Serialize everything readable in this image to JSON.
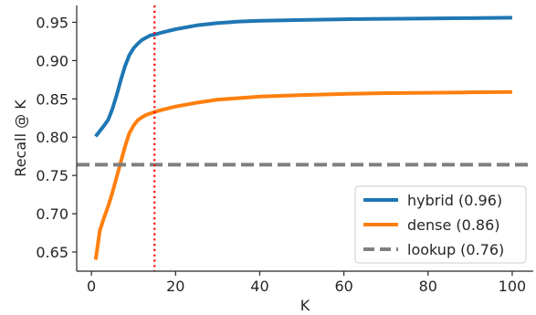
{
  "chart_data": {
    "type": "line",
    "xlabel": "K",
    "ylabel": "Recall @ K",
    "xlim": [
      -3.5,
      105
    ],
    "ylim": [
      0.625,
      0.972
    ],
    "x_ticks": [
      0,
      20,
      40,
      60,
      80,
      100
    ],
    "y_ticks": [
      0.65,
      0.7,
      0.75,
      0.8,
      0.85,
      0.9,
      0.95
    ],
    "grid": false,
    "legend_position": "lower-right",
    "series": [
      {
        "name": "hybrid (0.96)",
        "color": "#1f77b4",
        "style": "solid",
        "x": [
          1,
          2,
          3,
          4,
          5,
          6,
          7,
          8,
          9,
          10,
          11,
          12,
          13,
          14,
          15,
          17,
          20,
          25,
          30,
          35,
          40,
          50,
          60,
          70,
          80,
          90,
          100
        ],
        "y": [
          0.801,
          0.808,
          0.815,
          0.823,
          0.837,
          0.855,
          0.875,
          0.893,
          0.907,
          0.916,
          0.922,
          0.927,
          0.93,
          0.933,
          0.934,
          0.937,
          0.941,
          0.946,
          0.949,
          0.951,
          0.952,
          0.953,
          0.954,
          0.9545,
          0.955,
          0.9555,
          0.956
        ]
      },
      {
        "name": "dense (0.86)",
        "color": "#ff7f0e",
        "style": "solid",
        "x": [
          1,
          2,
          3,
          4,
          5,
          6,
          7,
          8,
          9,
          10,
          11,
          12,
          13,
          14,
          15,
          17,
          20,
          25,
          30,
          35,
          40,
          50,
          60,
          70,
          80,
          90,
          100
        ],
        "y": [
          0.64,
          0.678,
          0.695,
          0.71,
          0.728,
          0.748,
          0.768,
          0.788,
          0.805,
          0.815,
          0.822,
          0.826,
          0.829,
          0.831,
          0.833,
          0.836,
          0.84,
          0.845,
          0.849,
          0.851,
          0.853,
          0.855,
          0.8565,
          0.8575,
          0.858,
          0.8585,
          0.859
        ]
      },
      {
        "name": "lookup (0.76)",
        "color": "#7f7f7f",
        "style": "dashed",
        "x": [
          -3.5,
          105
        ],
        "y": [
          0.764,
          0.764
        ]
      }
    ],
    "vline": {
      "x": 15,
      "color": "#ff0000",
      "style": "dotted"
    }
  }
}
